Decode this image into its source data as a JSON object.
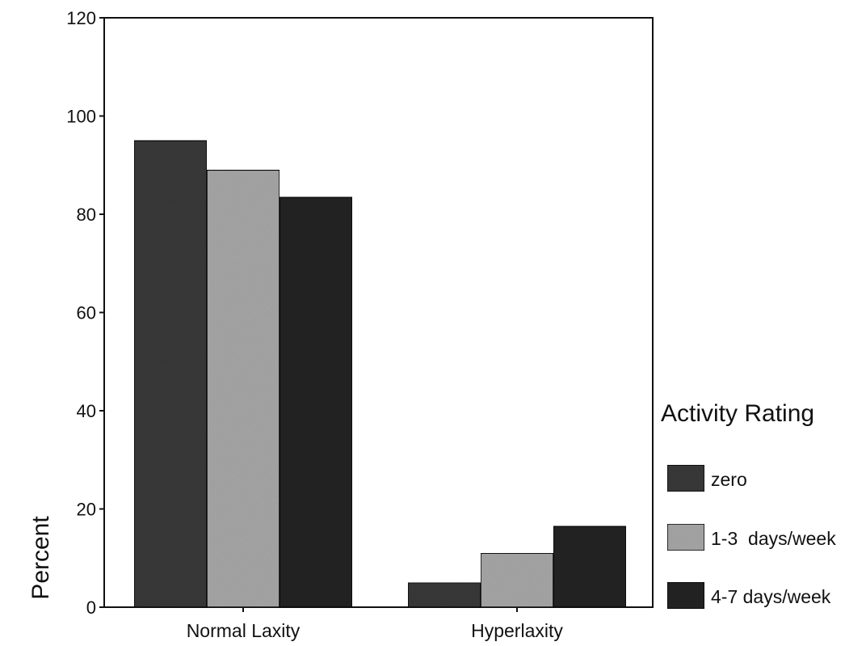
{
  "chart_data": {
    "type": "bar",
    "title": "",
    "xlabel": "",
    "ylabel": "Percent",
    "ylim": [
      0,
      120
    ],
    "yticks": [
      0,
      20,
      40,
      60,
      80,
      100,
      120
    ],
    "categories": [
      "Normal Laxity",
      "Hyperlaxity"
    ],
    "series": [
      {
        "name": "zero",
        "values": [
          95,
          5
        ],
        "color": "#3a3a3a"
      },
      {
        "name": "1-3  days/week",
        "values": [
          89,
          11
        ],
        "color": "#a8a8a8"
      },
      {
        "name": "4-7 days/week",
        "values": [
          83.5,
          16.5
        ],
        "color": "#262626"
      }
    ],
    "legend": {
      "title": "Activity Rating",
      "placement": "right"
    },
    "grid": false
  }
}
